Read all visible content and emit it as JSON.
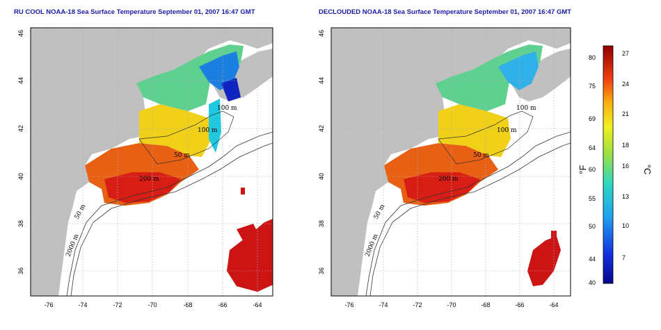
{
  "maps": [
    {
      "title": "RU COOL NOAA-18 Sea Surface Temperature September 01, 2007 16:47 GMT"
    },
    {
      "title": "DECLOUDED NOAA-18 Sea Surface Temperature September 01, 2007 16:47 GMT"
    }
  ],
  "axes": {
    "x_ticks": [
      "-76",
      "-74",
      "-72",
      "-70",
      "-68",
      "-66",
      "-64"
    ],
    "y_ticks": [
      "36",
      "38",
      "40",
      "42",
      "44",
      "46"
    ]
  },
  "contour_labels": [
    "100 m",
    "100 m",
    "50 m",
    "200 m",
    "50 m",
    "2000 m"
  ],
  "colorbar": {
    "f_label": "°F",
    "c_label": "°C",
    "f_ticks": [
      "80",
      "75",
      "69",
      "64",
      "60",
      "55",
      "50",
      "44",
      "40"
    ],
    "c_ticks": [
      "27",
      "24",
      "21",
      "18",
      "16",
      "13",
      "10",
      "7"
    ]
  },
  "colors": {
    "land": "#c0c0c0",
    "title": "#1a1aa8",
    "grid": "#b0b0b0",
    "warm": "#cc1111",
    "cool": "#1a3fd6"
  }
}
